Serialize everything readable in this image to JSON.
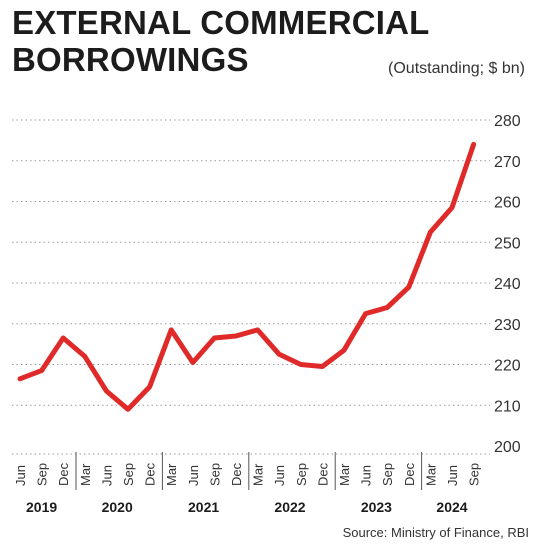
{
  "chart_data": {
    "type": "line",
    "title_lines": [
      "EXTERNAL COMMERCIAL",
      "BORROWINGS"
    ],
    "unit_label": "(Outstanding; $ bn)",
    "source": "Source: Ministry of Finance, RBI",
    "x": [
      "Jun",
      "Sep",
      "Dec",
      "Mar",
      "Jun",
      "Sep",
      "Dec",
      "Mar",
      "Jun",
      "Sep",
      "Dec",
      "Mar",
      "Jun",
      "Sep",
      "Dec",
      "Mar",
      "Jun",
      "Sep",
      "Dec",
      "Mar",
      "Jun",
      "Sep"
    ],
    "years": [
      {
        "label": "2019",
        "start": 0,
        "end": 2
      },
      {
        "label": "2020",
        "start": 3,
        "end": 6
      },
      {
        "label": "2021",
        "start": 7,
        "end": 10
      },
      {
        "label": "2022",
        "start": 11,
        "end": 14
      },
      {
        "label": "2023",
        "start": 15,
        "end": 18
      },
      {
        "label": "2024",
        "start": 19,
        "end": 21
      }
    ],
    "series": [
      {
        "values": [
          216.5,
          218.5,
          226.5,
          222,
          213.5,
          209,
          214.5,
          228.5,
          220.5,
          226.5,
          227,
          228.5,
          222.5,
          220,
          219.5,
          223.5,
          232.5,
          234,
          239,
          252.5,
          258.5,
          274
        ]
      }
    ],
    "ylim": [
      200,
      280
    ],
    "yticks": [
      200,
      210,
      220,
      230,
      240,
      250,
      260,
      270,
      280
    ],
    "grid": true,
    "colors": {
      "line": "#e02a2a",
      "grid": "#9a9a9a",
      "axis": "#555555"
    }
  }
}
